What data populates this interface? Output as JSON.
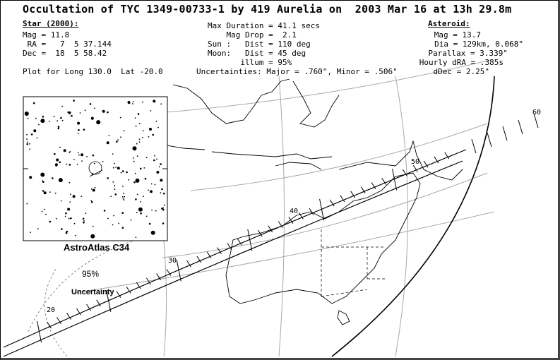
{
  "title": "Occultation of TYC 1349-00733-1 by 419 Aurelia on  2003 Mar 16 at 13h 29.8m",
  "star": {
    "heading": "Star (2000):",
    "mag": "Mag = 11.8",
    "ra": " RA =   7  5 37.144",
    "dec": "Dec =  18  5 58.42"
  },
  "event": {
    "max_duration": "Max Duration = 41.1 secs",
    "mag_drop": "    Mag Drop =  2.1",
    "sun": "Sun :   Dist = 110 deg",
    "moon": "Moon:   Dist = 45 deg",
    "illum": "       illum = 95%"
  },
  "asteroid": {
    "heading": "Asteroid:",
    "mag": "Mag = 13.7",
    "dia": "Dia = 129km, 0.068\"",
    "parallax": "Parallax = 3.339\"",
    "hourly_dra": "Hourly dRA = .385s",
    "ddec": "dDec = 2.25\""
  },
  "plot_info": "Plot for Long 130.0  Lat -20.0",
  "uncertainties": "Uncertainties: Major = .760\", Minor = .506\"",
  "inset": {
    "caption": "AstroAtlas C34"
  },
  "confidence": "95%",
  "uncertainty_label": "Uncertainty",
  "latitude_labels": [
    "20",
    "30",
    "40",
    "50",
    "60"
  ],
  "colors": {
    "ink": "#000000",
    "grid": "#a8a8a8",
    "dashed_border": "#888888",
    "background": "#ffffff"
  }
}
